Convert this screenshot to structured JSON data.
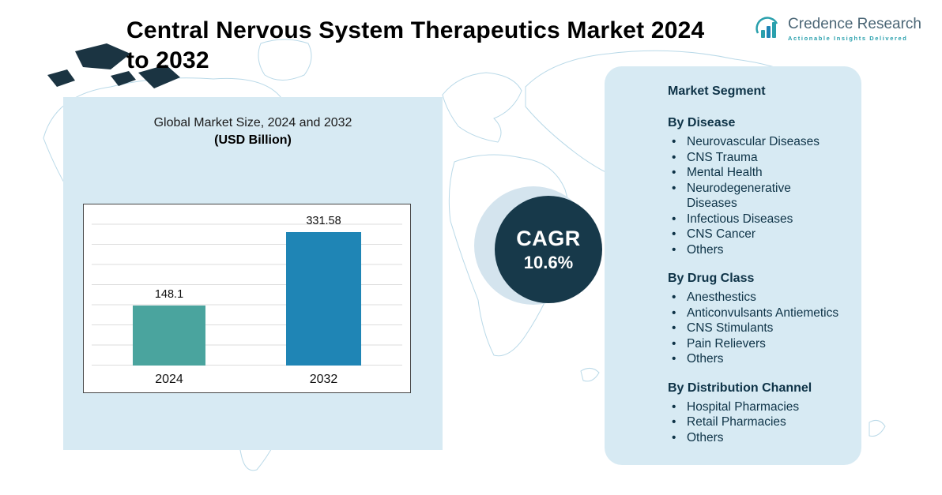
{
  "title": "Central Nervous System Therapeutics Market 2024 to 2032",
  "logo": {
    "name": "Credence Research",
    "tagline": "Actionable Insights Delivered",
    "icon": "bar-chart-logo-icon",
    "accent_teal": "#2aa0ad",
    "accent_blue": "#1f85b5"
  },
  "chart": {
    "subtitle_line1": "Global Market Size, 2024 and 2032",
    "subtitle_line2": "(USD Billion)"
  },
  "cagr": {
    "label": "CAGR",
    "value": "10.6%"
  },
  "chart_data": {
    "type": "bar",
    "title": "Global Market Size, 2024 and 2032 (USD Billion)",
    "categories": [
      "2024",
      "2032"
    ],
    "values": [
      148.1,
      331.58
    ],
    "xlabel": "",
    "ylabel": "USD Billion",
    "ylim": [
      0,
      400
    ],
    "grid": true,
    "legend": false,
    "bar_colors": [
      "#4aa49e",
      "#1f85b5"
    ],
    "annotations": {
      "cagr": "10.6%"
    }
  },
  "segments": {
    "heading": "Market Segment",
    "groups": [
      {
        "title": "By Disease",
        "items": [
          "Neurovascular Diseases",
          "CNS Trauma",
          "Mental Health",
          "Neurodegenerative Diseases",
          "Infectious Diseases",
          "CNS Cancer",
          "Others"
        ]
      },
      {
        "title": "By Drug Class",
        "items": [
          "Anesthestics",
          "Anticonvulsants Antiemetics",
          "CNS Stimulants",
          "Pain Relievers",
          "Others"
        ]
      },
      {
        "title": "By Distribution Channel",
        "items": [
          "Hospital Pharmacies",
          "Retail Pharmacies",
          "Others"
        ]
      }
    ]
  }
}
